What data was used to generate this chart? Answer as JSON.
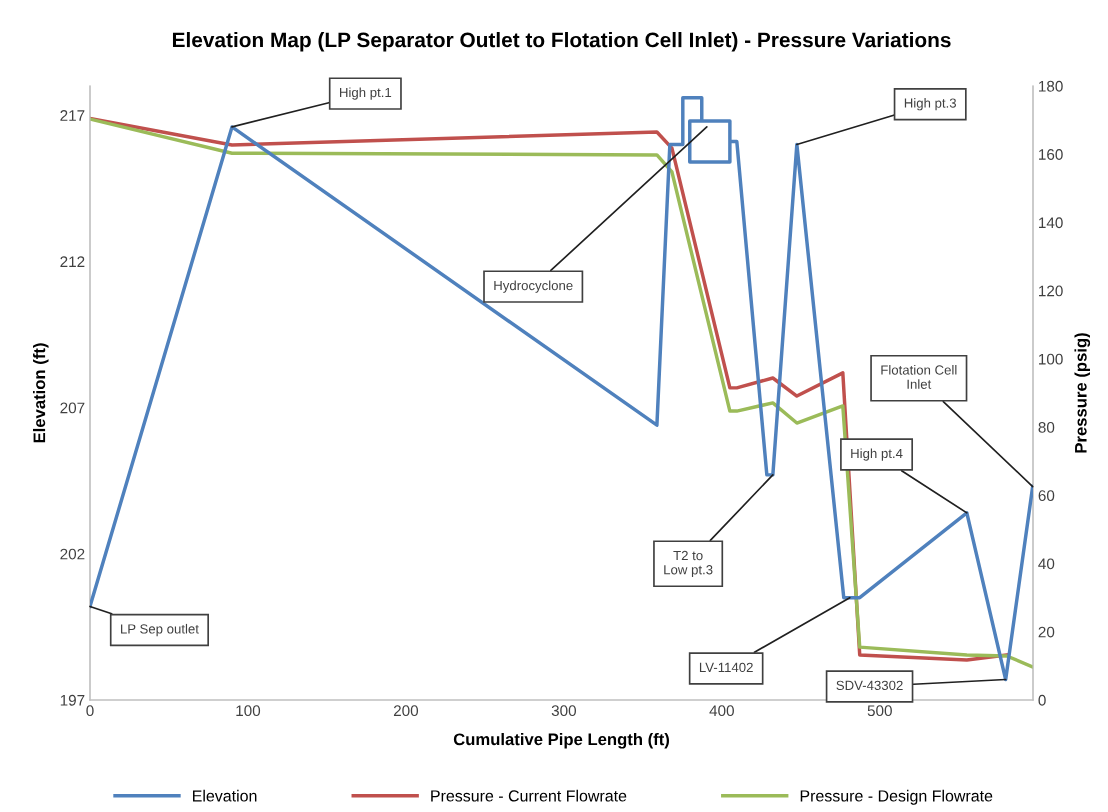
{
  "chart_data": {
    "type": "line",
    "title": "Elevation Map (LP Separator Outlet to Flotation Cell Inlet) - Pressure Variations",
    "xlabel": "Cumulative Pipe Length (ft)",
    "ylabel": "Elevation (ft)",
    "y2label": "Pressure (psig)",
    "xlim": [
      0,
      597
    ],
    "xticks": [
      0,
      100,
      200,
      300,
      400,
      500
    ],
    "ylim": [
      197,
      218
    ],
    "yticks": [
      197,
      202,
      207,
      212,
      217
    ],
    "y2lim": [
      0,
      180
    ],
    "y2ticks": [
      0,
      20,
      40,
      60,
      80,
      100,
      120,
      140,
      160,
      180
    ],
    "grid": false,
    "legend": "bottom",
    "marker": "none",
    "line_style": "solid",
    "series": [
      {
        "name": "Elevation",
        "color": "#4f81bd",
        "x": [
          0,
          89.9,
          358.9,
          367.1,
          375.3,
          375.3,
          387.3,
          387.3,
          379.7,
          379.7,
          405.1,
          405.1,
          387.3,
          405.1,
          405.1,
          409.5,
          428.5,
          432.3,
          447.5,
          477.2,
          487.3,
          555.1,
          579.7,
          596.8
        ],
        "values": [
          200.2,
          216.6,
          206.4,
          216.0,
          216.0,
          217.6,
          217.6,
          216.8,
          216.8,
          215.4,
          215.4,
          216.8,
          216.8,
          216.8,
          216.1,
          216.1,
          204.7,
          204.7,
          216.0,
          200.5,
          200.5,
          203.4,
          197.7,
          204.3
        ]
      },
      {
        "name": "Pressure - Current Flowrate",
        "color": "#c0504d",
        "axis": "y2",
        "x": [
          0,
          89.9,
          358.9,
          368.4,
          405.1,
          409.5,
          432.3,
          447.5,
          476.6,
          487.3,
          555.1,
          580.4
        ],
        "values": [
          170.5,
          162.7,
          166.5,
          161.8,
          91.5,
          91.5,
          94.4,
          89.1,
          95.9,
          13.2,
          11.7,
          13.2
        ]
      },
      {
        "name": "Pressure - Design Flowrate",
        "color": "#9bbb59",
        "axis": "y2",
        "x": [
          0,
          89.9,
          358.9,
          368.4,
          405.1,
          409.5,
          432.3,
          447.5,
          476.6,
          487.3,
          555.1,
          580.4,
          596.8
        ],
        "values": [
          170.3,
          160.3,
          159.8,
          154.8,
          84.7,
          84.7,
          87.1,
          81.2,
          86.2,
          15.5,
          13.2,
          12.9,
          9.7
        ]
      }
    ],
    "annotations": [
      {
        "text": "High pt.1",
        "x": 89.9,
        "y": 216.6
      },
      {
        "text": "Hydrocyclone",
        "x": 390.5,
        "y": 216.6
      },
      {
        "text": "High pt.3",
        "x": 447.5,
        "y": 216.0
      },
      {
        "text": "T2 to\nLow pt.3",
        "x": 432.3,
        "y": 204.7
      },
      {
        "text": "Flotation Cell\nInlet",
        "x": 596.8,
        "y": 204.3
      },
      {
        "text": "High pt.4",
        "x": 555.1,
        "y": 203.4
      },
      {
        "text": "LV-11402",
        "x": 481.0,
        "y": 200.5
      },
      {
        "text": "SDV-43302",
        "x": 579.7,
        "y": 197.7
      },
      {
        "text": "LP Sep outlet",
        "x": 0,
        "y": 200.2
      }
    ]
  }
}
